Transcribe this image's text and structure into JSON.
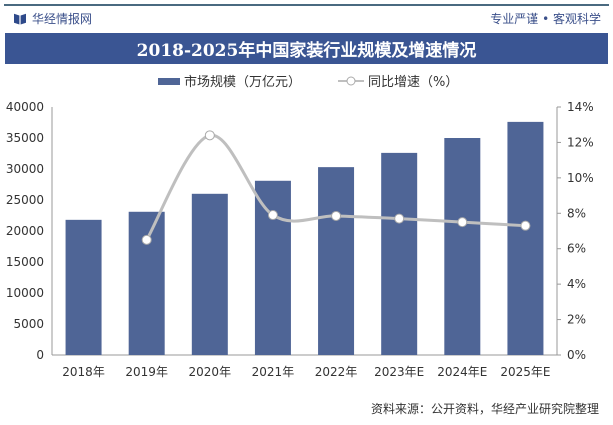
{
  "header": {
    "brand": "华经情报网",
    "slogan": "专业严谨 • 客观科学"
  },
  "footer": "资料来源：公开资料，华经产业研究院整理",
  "chart_data": {
    "type": "bar+line",
    "title": "2018-2025年中国家装行业规模及增速情况",
    "categories": [
      "2018年",
      "2019年",
      "2020年",
      "2021年",
      "2022年",
      "2023年E",
      "2024年E",
      "2025年E"
    ],
    "series": [
      {
        "name": "市场规模（万亿元）",
        "type": "bar",
        "axis": "left",
        "color": "#4f6596",
        "values": [
          21800,
          23100,
          26000,
          28100,
          30300,
          32600,
          35000,
          37600
        ]
      },
      {
        "name": "同比增速（%）",
        "type": "line",
        "axis": "right",
        "color": "#bfbfbf",
        "values": [
          null,
          6.5,
          12.4,
          7.9,
          7.85,
          7.7,
          7.5,
          7.3
        ]
      }
    ],
    "ylim_left": [
      0,
      40000
    ],
    "yticks_left": [
      "0",
      "5000",
      "10000",
      "15000",
      "20000",
      "25000",
      "30000",
      "35000",
      "40000"
    ],
    "ylim_right": [
      0,
      14
    ],
    "yticks_right": [
      "0%",
      "2%",
      "4%",
      "6%",
      "8%",
      "10%",
      "12%",
      "14%"
    ],
    "legend": "top",
    "grid": false
  }
}
